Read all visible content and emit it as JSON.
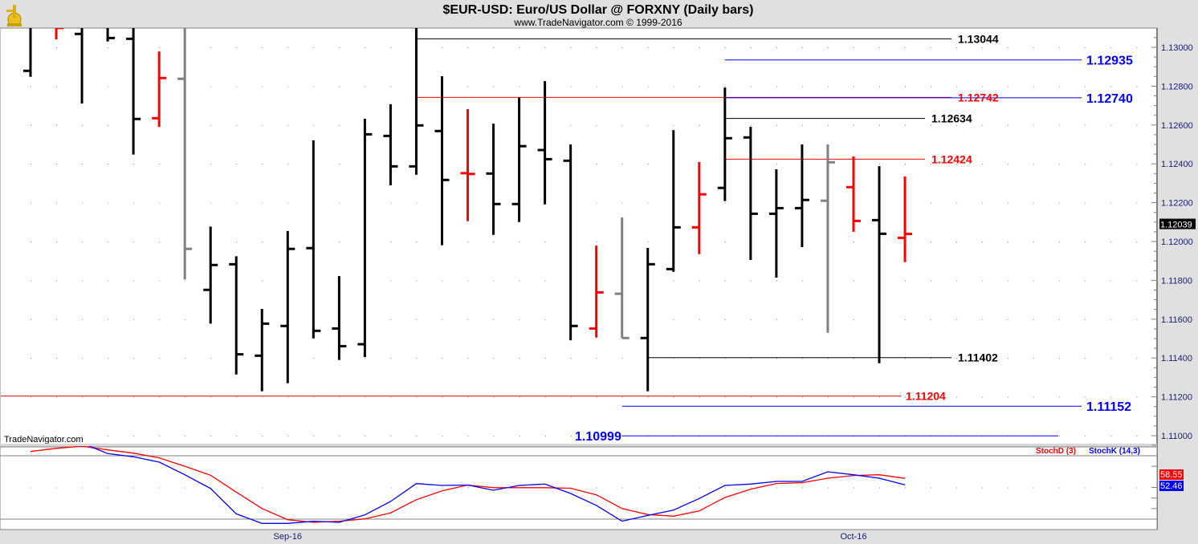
{
  "header": {
    "title": "$EUR-USD:  Euro/US Dollar @ FORXNY  (Daily bars)",
    "subtitle": "www.TradeNavigator.com © 1999-2016",
    "logo_icon": "gold-navigator-figure-icon"
  },
  "watermark": "TradeNavigator.com",
  "colors": {
    "up": "#000000",
    "down": "#ff0000",
    "neutral": "#808080",
    "blue": "#0000ff",
    "axis_text": "#1a1a7a",
    "background": "#ffffff",
    "frame": "#e0e0e0"
  },
  "chart_data": [
    {
      "type": "ohlc",
      "title": "$EUR-USD:  Euro/US Dollar @ FORXNY  (Daily bars)",
      "ylim": [
        1.1095,
        1.1315
      ],
      "y_ticks": [
        "1.13000",
        "1.12800",
        "1.12600",
        "1.12400",
        "1.12200",
        "1.12000",
        "1.11800",
        "1.11600",
        "1.11400",
        "1.11200",
        "1.11000"
      ],
      "x_ticks": [
        {
          "bar": 10,
          "label": "Sep-16"
        },
        {
          "bar": 32,
          "label": "Oct-16"
        }
      ],
      "grid": "dotted",
      "last_price": "1.12039",
      "bars": [
        {
          "o": 1.12879,
          "h": 1.1314,
          "l": 1.12848,
          "c": 1.1312,
          "color": "black"
        },
        {
          "o": 1.1313,
          "h": 1.1316,
          "l": 1.13041,
          "c": 1.131,
          "color": "red"
        },
        {
          "o": 1.13069,
          "h": 1.1318,
          "l": 1.12711,
          "c": 1.1313,
          "color": "black"
        },
        {
          "o": 1.1316,
          "h": 1.132,
          "l": 1.1303,
          "c": 1.13048,
          "color": "black"
        },
        {
          "o": 1.13044,
          "h": 1.1315,
          "l": 1.12448,
          "c": 1.12631,
          "color": "black"
        },
        {
          "o": 1.12635,
          "h": 1.12979,
          "l": 1.1259,
          "c": 1.12842,
          "color": "red"
        },
        {
          "o": 1.12838,
          "h": 1.1315,
          "l": 1.11805,
          "c": 1.11962,
          "color": "gray"
        },
        {
          "o": 1.11751,
          "h": 1.12077,
          "l": 1.11577,
          "c": 1.11879,
          "color": "black"
        },
        {
          "o": 1.11883,
          "h": 1.11924,
          "l": 1.11315,
          "c": 1.11419,
          "color": "black"
        },
        {
          "o": 1.11412,
          "h": 1.11653,
          "l": 1.11229,
          "c": 1.11577,
          "color": "black"
        },
        {
          "o": 1.11565,
          "h": 1.12054,
          "l": 1.1127,
          "c": 1.11962,
          "color": "black"
        },
        {
          "o": 1.11966,
          "h": 1.12521,
          "l": 1.11501,
          "c": 1.1154,
          "color": "black"
        },
        {
          "o": 1.11552,
          "h": 1.11822,
          "l": 1.1139,
          "c": 1.11461,
          "color": "black"
        },
        {
          "o": 1.11471,
          "h": 1.12632,
          "l": 1.11405,
          "c": 1.12552,
          "color": "black"
        },
        {
          "o": 1.12544,
          "h": 1.12707,
          "l": 1.1229,
          "c": 1.12387,
          "color": "black"
        },
        {
          "o": 1.12387,
          "h": 1.1315,
          "l": 1.12344,
          "c": 1.12598,
          "color": "black"
        },
        {
          "o": 1.12569,
          "h": 1.12851,
          "l": 1.11981,
          "c": 1.12317,
          "color": "black"
        },
        {
          "o": 1.12352,
          "h": 1.12682,
          "l": 1.12105,
          "c": 1.12348,
          "color": "red"
        },
        {
          "o": 1.1235,
          "h": 1.12607,
          "l": 1.12034,
          "c": 1.12193,
          "color": "black"
        },
        {
          "o": 1.12193,
          "h": 1.12741,
          "l": 1.121,
          "c": 1.12491,
          "color": "black"
        },
        {
          "o": 1.12471,
          "h": 1.12826,
          "l": 1.12191,
          "c": 1.12424,
          "color": "black"
        },
        {
          "o": 1.12416,
          "h": 1.125,
          "l": 1.11491,
          "c": 1.11565,
          "color": "black"
        },
        {
          "o": 1.11552,
          "h": 1.11979,
          "l": 1.11505,
          "c": 1.11738,
          "color": "red"
        },
        {
          "o": 1.11731,
          "h": 1.12124,
          "l": 1.11503,
          "c": 1.11503,
          "color": "gray"
        },
        {
          "o": 1.11503,
          "h": 1.11967,
          "l": 1.11229,
          "c": 1.11883,
          "color": "black"
        },
        {
          "o": 1.11858,
          "h": 1.12574,
          "l": 1.11844,
          "c": 1.12073,
          "color": "black"
        },
        {
          "o": 1.12073,
          "h": 1.12409,
          "l": 1.11935,
          "c": 1.12243,
          "color": "red"
        },
        {
          "o": 1.12276,
          "h": 1.12793,
          "l": 1.12208,
          "c": 1.12532,
          "color": "black"
        },
        {
          "o": 1.12536,
          "h": 1.12591,
          "l": 1.11905,
          "c": 1.12143,
          "color": "black"
        },
        {
          "o": 1.12143,
          "h": 1.12372,
          "l": 1.11814,
          "c": 1.12172,
          "color": "black"
        },
        {
          "o": 1.12172,
          "h": 1.125,
          "l": 1.11971,
          "c": 1.12214,
          "color": "black"
        },
        {
          "o": 1.1221,
          "h": 1.125,
          "l": 1.1153,
          "c": 1.12408,
          "color": "gray"
        },
        {
          "o": 1.1228,
          "h": 1.12438,
          "l": 1.1205,
          "c": 1.12106,
          "color": "red"
        },
        {
          "o": 1.1211,
          "h": 1.12388,
          "l": 1.11373,
          "c": 1.1204,
          "color": "black"
        },
        {
          "o": 1.12019,
          "h": 1.12335,
          "l": 1.11894,
          "c": 1.12039,
          "color": "red"
        }
      ],
      "levels": [
        {
          "value": 1.13044,
          "label": "1.13044",
          "color": "#000000",
          "from_bar": 15
        },
        {
          "value": 1.12935,
          "label": "1.12935",
          "color": "#0000ff",
          "from_bar": 27
        },
        {
          "value": 1.12742,
          "label": "1.12742",
          "color": "#ff0000",
          "from_bar": 15
        },
        {
          "value": 1.1274,
          "label": "1.12740",
          "color": "#0000ff",
          "from_bar": 27
        },
        {
          "value": 1.12634,
          "label": "1.12634",
          "color": "#000000",
          "from_bar": 27
        },
        {
          "value": 1.12424,
          "label": "1.12424",
          "color": "#ff0000",
          "from_bar": 27
        },
        {
          "value": 1.11402,
          "label": "1.11402",
          "color": "#000000",
          "from_bar": 24
        },
        {
          "value": 1.11204,
          "label": "1.11204",
          "color": "#ff0000",
          "from_bar": 0
        },
        {
          "value": 1.11152,
          "label": "1.11152",
          "color": "#0000ff",
          "from_bar": 23
        },
        {
          "value": 1.10999,
          "label": "1.10999",
          "color": "#0000ff",
          "from_bar": 23
        }
      ]
    },
    {
      "type": "line",
      "reference_lines": [
        20,
        80
      ],
      "series": [
        {
          "name": "StochD (3)",
          "color": "#ff0000",
          "last_label": "58.55",
          "values": [
            84,
            87,
            89,
            85.5,
            82.5,
            78,
            70,
            61.5,
            45.6,
            30,
            19.5,
            17,
            18,
            20.2,
            25.9,
            38.4,
            46.8,
            52.3,
            49.8,
            49.8,
            49.8,
            49.2,
            43,
            30,
            24.3,
            22.8,
            27.8,
            40.5,
            48.3,
            53.7,
            54.5,
            58.7,
            61.3,
            62,
            58.55
          ]
        },
        {
          "name": "StochK (14,3)",
          "color": "#0000ff",
          "last_label": "52.46",
          "values": [
            95,
            96,
            92,
            82,
            79,
            74,
            62,
            49,
            25,
            16,
            16,
            18,
            17,
            24,
            36.7,
            53.6,
            51.9,
            52.3,
            47.3,
            51.9,
            53.2,
            44.3,
            33,
            18,
            23.5,
            28.6,
            39.5,
            51.9,
            53.2,
            55.7,
            55.7,
            64.8,
            62,
            58.7,
            52.46
          ]
        }
      ]
    }
  ]
}
